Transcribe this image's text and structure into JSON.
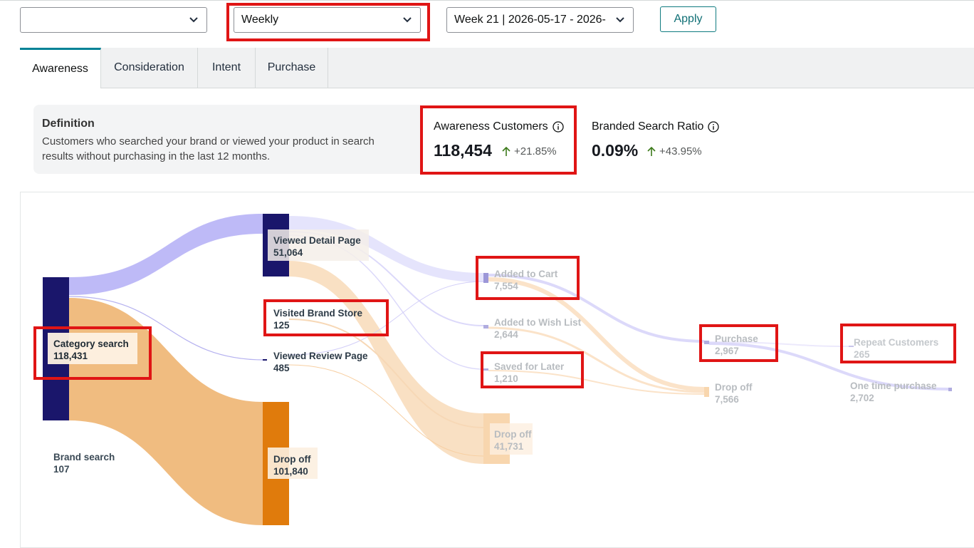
{
  "filters": {
    "first_select_value": "",
    "period_select_value": "Weekly",
    "week_select_value": "Week 21 | 2026-05-17 - 2026-",
    "apply_label": "Apply"
  },
  "tabs": [
    "Awareness",
    "Consideration",
    "Intent",
    "Purchase"
  ],
  "active_tab": "Awareness",
  "definition": {
    "title": "Definition",
    "text": "Customers who searched your brand or viewed your product in search results without purchasing in the last 12 months."
  },
  "metrics": [
    {
      "label": "Awareness Customers",
      "value": "118,454",
      "change": "+21.85%",
      "trend": "up"
    },
    {
      "label": "Branded Search Ratio",
      "value": "0.09%",
      "change": "+43.95%",
      "trend": "up"
    }
  ],
  "colors": {
    "accent_tab": "#008296",
    "node_dark": "#1a166b",
    "node_orange": "#e07b0c",
    "flow_purple": "#bbb6f7",
    "flow_orange": "#f0bc80",
    "highlight_red": "#e01515",
    "trend_up": "#3c7a1a"
  },
  "sankey": {
    "nodes": [
      {
        "id": "category_search",
        "label": "Category search",
        "value": "118,431"
      },
      {
        "id": "brand_search",
        "label": "Brand search",
        "value": "107"
      },
      {
        "id": "viewed_detail_page",
        "label": "Viewed Detail Page",
        "value": "51,064"
      },
      {
        "id": "visited_brand_store",
        "label": "Visited Brand Store",
        "value": "125"
      },
      {
        "id": "viewed_review_page",
        "label": "Viewed Review Page",
        "value": "485"
      },
      {
        "id": "drop_off_1",
        "label": "Drop off",
        "value": "101,840"
      },
      {
        "id": "added_to_cart",
        "label": "Added to Cart",
        "value": "7,554"
      },
      {
        "id": "added_to_wish_list",
        "label": "Added to Wish List",
        "value": "2,644"
      },
      {
        "id": "saved_for_later",
        "label": "Saved for Later",
        "value": "1,210"
      },
      {
        "id": "drop_off_2",
        "label": "Drop off",
        "value": "41,731"
      },
      {
        "id": "purchase",
        "label": "Purchase",
        "value": "2,967"
      },
      {
        "id": "drop_off_3",
        "label": "Drop off",
        "value": "7,566"
      },
      {
        "id": "repeat_customers",
        "label": "Repeat Customers",
        "value": "265"
      },
      {
        "id": "one_time_purchase",
        "label": "One time purchase",
        "value": "2,702"
      }
    ]
  }
}
